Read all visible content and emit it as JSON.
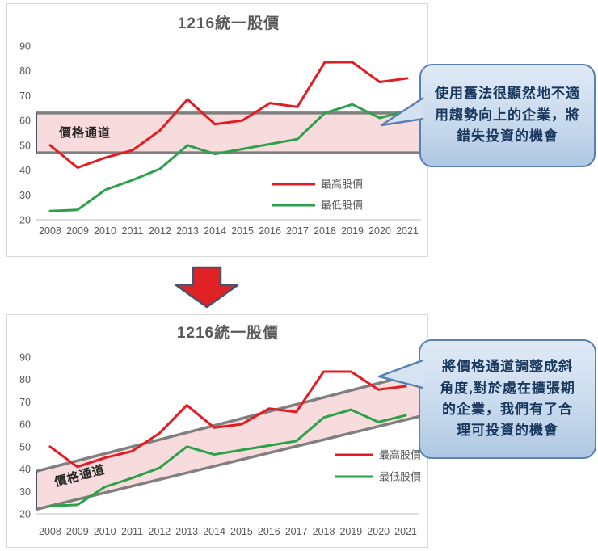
{
  "chart_data": [
    {
      "type": "line",
      "title": "1216統一股價",
      "x": [
        "2008",
        "2009",
        "2010",
        "2011",
        "2012",
        "2013",
        "2014",
        "2015",
        "2016",
        "2017",
        "2018",
        "2019",
        "2020",
        "2021"
      ],
      "ylim": [
        20,
        90
      ],
      "yticks": [
        20,
        30,
        40,
        50,
        60,
        70,
        80,
        90
      ],
      "grid": false,
      "legend_position": "inside-center-right",
      "series": [
        {
          "name": "最高股價",
          "color": "#e41b23",
          "values": [
            50,
            41,
            45,
            48,
            56,
            68.5,
            58.5,
            60,
            67,
            65.5,
            83.5,
            83.5,
            75.5,
            77
          ]
        },
        {
          "name": "最低股價",
          "color": "#2ba14a",
          "values": [
            23.5,
            24,
            32,
            36,
            40.5,
            50,
            46.5,
            48.5,
            50.5,
            52.5,
            63,
            66.5,
            61,
            64
          ]
        }
      ],
      "channel": {
        "label": "價格通道",
        "fill": "#f8dbdc",
        "line_color": "#7f7f7f",
        "edge_color": "#44546a",
        "top": [
          63,
          63
        ],
        "bottom": [
          47,
          47
        ]
      }
    },
    {
      "type": "line",
      "title": "1216統一股價",
      "x": [
        "2008",
        "2009",
        "2010",
        "2011",
        "2012",
        "2013",
        "2014",
        "2015",
        "2016",
        "2017",
        "2018",
        "2019",
        "2020",
        "2021"
      ],
      "ylim": [
        20,
        90
      ],
      "yticks": [
        20,
        30,
        40,
        50,
        60,
        70,
        80,
        90
      ],
      "grid": false,
      "legend_position": "inside-right",
      "series": [
        {
          "name": "最高股價",
          "color": "#e41b23",
          "values": [
            50,
            41,
            45,
            48,
            56,
            68.5,
            58.5,
            60,
            67,
            65.5,
            83.5,
            83.5,
            75.5,
            77
          ]
        },
        {
          "name": "最低股價",
          "color": "#2ba14a",
          "values": [
            23.5,
            24,
            32,
            36,
            40.5,
            50,
            46.5,
            48.5,
            50.5,
            52.5,
            63,
            66.5,
            61,
            64
          ]
        }
      ],
      "channel": {
        "label": "價格通道",
        "fill": "#f8dbdc",
        "line_color": "#7f7f7f",
        "edge_color": "#44546a",
        "top": [
          39,
          83
        ],
        "bottom": [
          22,
          63.5
        ]
      }
    }
  ],
  "callouts": [
    {
      "text": "使用舊法很顯然地不適\n用趨勢向上的企業，將\n錯失投資的機會"
    },
    {
      "text": "將價格通道調整成斜\n角度,對於處在擴張期\n的企業，我們有了合\n理可投資的機會"
    }
  ],
  "arrow": {
    "fill": "#e02126",
    "outline": "#44546a"
  }
}
